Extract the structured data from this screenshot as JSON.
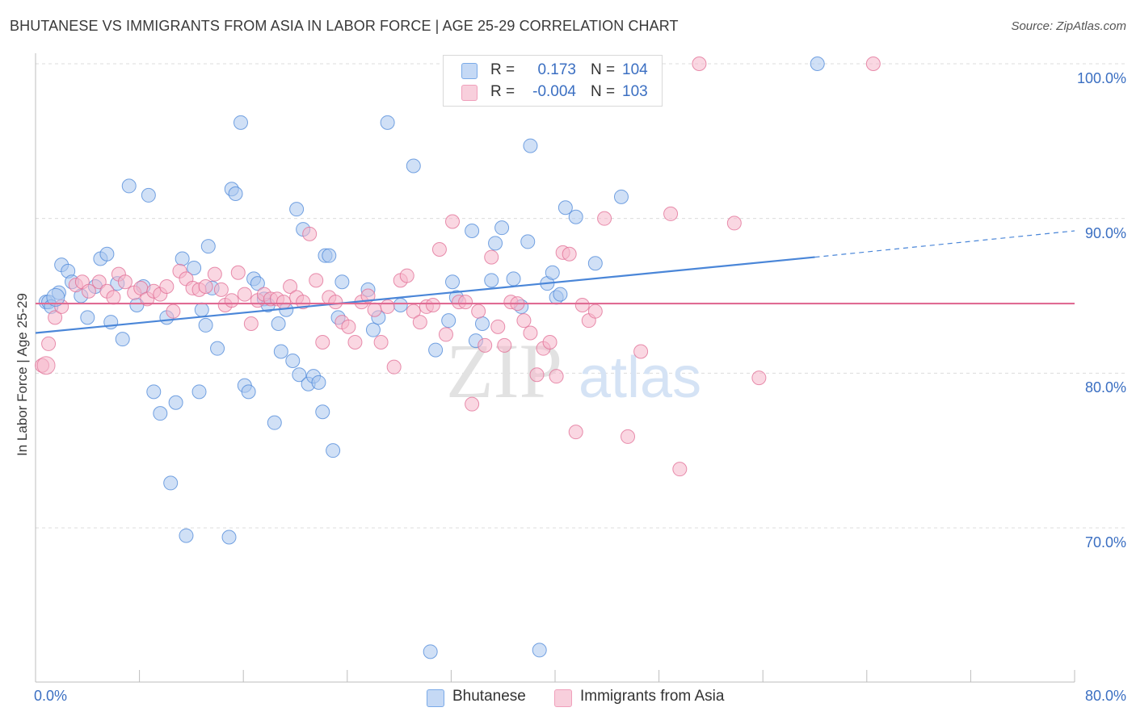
{
  "title": "BHUTANESE VS IMMIGRANTS FROM ASIA IN LABOR FORCE | AGE 25-29 CORRELATION CHART",
  "source": "Source: ZipAtlas.com",
  "watermark": {
    "zip": "ZIP",
    "atlas": "atlas"
  },
  "legend": {
    "rows": [
      {
        "r_label": "R =",
        "r_value": "0.173",
        "n_label": "N =",
        "n_value": "104",
        "color": "#7aaae8",
        "fill": "#c5d9f5"
      },
      {
        "r_label": "R =",
        "r_value": "-0.004",
        "n_label": "N =",
        "n_value": "103",
        "color": "#f0a0bb",
        "fill": "#f8cfdc"
      }
    ]
  },
  "bottom_legend": [
    {
      "label": "Bhutanese",
      "fill": "#c5d9f5",
      "border": "#7aaae8"
    },
    {
      "label": "Immigrants from Asia",
      "fill": "#f8cfdc",
      "border": "#f0a0bb"
    }
  ],
  "chart_data": {
    "type": "scatter",
    "title": "BHUTANESE VS IMMIGRANTS FROM ASIA IN LABOR FORCE | AGE 25-29 CORRELATION CHART",
    "xlabel": "",
    "ylabel": "In Labor Force | Age 25-29",
    "xlim": [
      0,
      80
    ],
    "ylim": [
      60,
      102
    ],
    "x_tick_labels": [
      "0.0%",
      "80.0%"
    ],
    "y_ticks": [
      70,
      80,
      90,
      100
    ],
    "y_tick_labels": [
      "70.0%",
      "80.0%",
      "90.0%",
      "100.0%"
    ],
    "grid": true,
    "series": [
      {
        "name": "Bhutanese",
        "color": "#4a86d8",
        "fill": "#a9c7ef",
        "trend": {
          "x0": 0,
          "y0": 82.6,
          "x1": 60,
          "y1": 87.5,
          "x_end": 80,
          "y_end": 89.2,
          "dashed_from": 60
        },
        "points": [
          [
            0.8,
            84.6
          ],
          [
            1.0,
            84.6
          ],
          [
            1.2,
            84.3
          ],
          [
            1.8,
            85.2
          ],
          [
            2.0,
            87.0
          ],
          [
            2.5,
            86.6
          ],
          [
            2.8,
            85.9
          ],
          [
            3.5,
            85.0
          ],
          [
            4.0,
            83.6
          ],
          [
            4.6,
            85.6
          ],
          [
            5.0,
            87.4
          ],
          [
            5.5,
            87.7
          ],
          [
            5.8,
            83.3
          ],
          [
            6.3,
            85.8
          ],
          [
            6.7,
            82.2
          ],
          [
            7.2,
            92.1
          ],
          [
            7.8,
            84.4
          ],
          [
            8.3,
            85.6
          ],
          [
            8.7,
            91.5
          ],
          [
            9.1,
            78.8
          ],
          [
            9.6,
            77.4
          ],
          [
            10.1,
            83.6
          ],
          [
            10.4,
            72.9
          ],
          [
            10.8,
            78.1
          ],
          [
            11.3,
            87.4
          ],
          [
            11.6,
            69.5
          ],
          [
            12.2,
            86.8
          ],
          [
            12.6,
            78.8
          ],
          [
            12.8,
            84.1
          ],
          [
            13.1,
            83.1
          ],
          [
            13.3,
            88.2
          ],
          [
            13.6,
            85.5
          ],
          [
            14.0,
            81.6
          ],
          [
            14.9,
            69.4
          ],
          [
            15.1,
            91.9
          ],
          [
            15.4,
            91.6
          ],
          [
            15.8,
            96.2
          ],
          [
            16.1,
            79.2
          ],
          [
            16.4,
            78.8
          ],
          [
            16.8,
            86.1
          ],
          [
            17.1,
            85.8
          ],
          [
            17.6,
            84.8
          ],
          [
            17.9,
            84.4
          ],
          [
            18.4,
            76.8
          ],
          [
            18.7,
            83.2
          ],
          [
            18.9,
            81.4
          ],
          [
            19.3,
            84.1
          ],
          [
            19.8,
            80.8
          ],
          [
            20.1,
            90.6
          ],
          [
            20.3,
            79.9
          ],
          [
            20.6,
            89.3
          ],
          [
            21.0,
            79.3
          ],
          [
            21.4,
            79.8
          ],
          [
            21.8,
            79.4
          ],
          [
            22.1,
            77.5
          ],
          [
            22.3,
            87.6
          ],
          [
            22.6,
            87.6
          ],
          [
            22.9,
            75.0
          ],
          [
            23.3,
            83.6
          ],
          [
            23.6,
            85.9
          ],
          [
            25.6,
            85.4
          ],
          [
            26.0,
            82.8
          ],
          [
            26.4,
            83.6
          ],
          [
            27.1,
            96.2
          ],
          [
            28.1,
            84.4
          ],
          [
            29.1,
            93.4
          ],
          [
            30.4,
            62.0
          ],
          [
            30.8,
            81.5
          ],
          [
            31.8,
            83.4
          ],
          [
            32.1,
            85.9
          ],
          [
            32.4,
            84.9
          ],
          [
            33.6,
            89.2
          ],
          [
            33.9,
            82.1
          ],
          [
            34.4,
            83.2
          ],
          [
            35.1,
            86.0
          ],
          [
            35.4,
            88.4
          ],
          [
            35.9,
            89.4
          ],
          [
            36.8,
            86.1
          ],
          [
            37.4,
            84.3
          ],
          [
            37.9,
            88.5
          ],
          [
            38.1,
            94.7
          ],
          [
            38.8,
            62.1
          ],
          [
            39.4,
            85.8
          ],
          [
            39.8,
            86.5
          ],
          [
            40.1,
            84.9
          ],
          [
            40.4,
            85.1
          ],
          [
            40.8,
            90.7
          ],
          [
            41.6,
            90.1
          ],
          [
            43.1,
            87.1
          ],
          [
            45.1,
            91.4
          ],
          [
            60.2,
            100.0
          ]
        ]
      },
      {
        "name": "Immigrants from Asia",
        "color": "#e06b93",
        "fill": "#f5b7cb",
        "trend": {
          "x0": 0,
          "y0": 84.5,
          "x1": 80,
          "y1": 84.5
        },
        "points": [
          [
            0.5,
            80.5
          ],
          [
            1.0,
            81.9
          ],
          [
            1.5,
            83.6
          ],
          [
            2.0,
            84.3
          ],
          [
            3.1,
            85.7
          ],
          [
            3.6,
            85.9
          ],
          [
            4.1,
            85.3
          ],
          [
            4.9,
            85.9
          ],
          [
            5.5,
            85.3
          ],
          [
            6.0,
            84.9
          ],
          [
            6.4,
            86.4
          ],
          [
            6.9,
            85.9
          ],
          [
            7.6,
            85.2
          ],
          [
            8.1,
            85.5
          ],
          [
            8.6,
            84.8
          ],
          [
            9.1,
            85.3
          ],
          [
            9.6,
            85.1
          ],
          [
            10.1,
            85.6
          ],
          [
            10.6,
            84.0
          ],
          [
            11.1,
            86.6
          ],
          [
            11.6,
            86.1
          ],
          [
            12.1,
            85.5
          ],
          [
            12.6,
            85.4
          ],
          [
            13.1,
            85.6
          ],
          [
            13.8,
            86.4
          ],
          [
            14.3,
            85.4
          ],
          [
            14.6,
            84.4
          ],
          [
            15.1,
            84.7
          ],
          [
            15.6,
            86.5
          ],
          [
            16.1,
            85.1
          ],
          [
            16.6,
            83.2
          ],
          [
            17.1,
            84.7
          ],
          [
            17.6,
            85.1
          ],
          [
            18.1,
            84.8
          ],
          [
            18.6,
            84.8
          ],
          [
            19.1,
            84.6
          ],
          [
            19.6,
            85.6
          ],
          [
            20.1,
            84.9
          ],
          [
            20.6,
            84.6
          ],
          [
            21.1,
            89.0
          ],
          [
            21.6,
            86.0
          ],
          [
            22.1,
            82.0
          ],
          [
            22.6,
            84.9
          ],
          [
            23.1,
            84.6
          ],
          [
            23.6,
            83.3
          ],
          [
            24.1,
            83.0
          ],
          [
            24.6,
            82.0
          ],
          [
            25.1,
            84.6
          ],
          [
            25.6,
            85.0
          ],
          [
            26.1,
            84.1
          ],
          [
            26.6,
            82.0
          ],
          [
            27.1,
            84.3
          ],
          [
            27.6,
            80.4
          ],
          [
            28.1,
            86.0
          ],
          [
            28.6,
            86.3
          ],
          [
            29.1,
            84.0
          ],
          [
            29.6,
            83.3
          ],
          [
            30.1,
            84.3
          ],
          [
            30.6,
            84.4
          ],
          [
            31.1,
            88.0
          ],
          [
            31.6,
            82.5
          ],
          [
            32.1,
            89.8
          ],
          [
            32.6,
            84.6
          ],
          [
            33.1,
            84.6
          ],
          [
            33.6,
            78.0
          ],
          [
            34.1,
            84.0
          ],
          [
            34.6,
            81.8
          ],
          [
            35.1,
            87.5
          ],
          [
            35.6,
            83.0
          ],
          [
            36.1,
            81.8
          ],
          [
            36.6,
            84.6
          ],
          [
            37.1,
            84.5
          ],
          [
            37.6,
            83.4
          ],
          [
            38.1,
            82.6
          ],
          [
            38.6,
            79.9
          ],
          [
            39.1,
            81.6
          ],
          [
            39.6,
            82.0
          ],
          [
            40.1,
            79.8
          ],
          [
            40.6,
            87.8
          ],
          [
            41.1,
            87.7
          ],
          [
            41.6,
            76.2
          ],
          [
            42.1,
            84.4
          ],
          [
            42.6,
            83.4
          ],
          [
            43.1,
            84.0
          ],
          [
            43.8,
            90.0
          ],
          [
            45.6,
            75.9
          ],
          [
            46.6,
            81.4
          ],
          [
            48.9,
            90.3
          ],
          [
            49.6,
            73.8
          ],
          [
            51.1,
            100.0
          ],
          [
            53.8,
            89.7
          ],
          [
            55.7,
            79.7
          ],
          [
            64.5,
            100.0
          ]
        ]
      }
    ]
  }
}
